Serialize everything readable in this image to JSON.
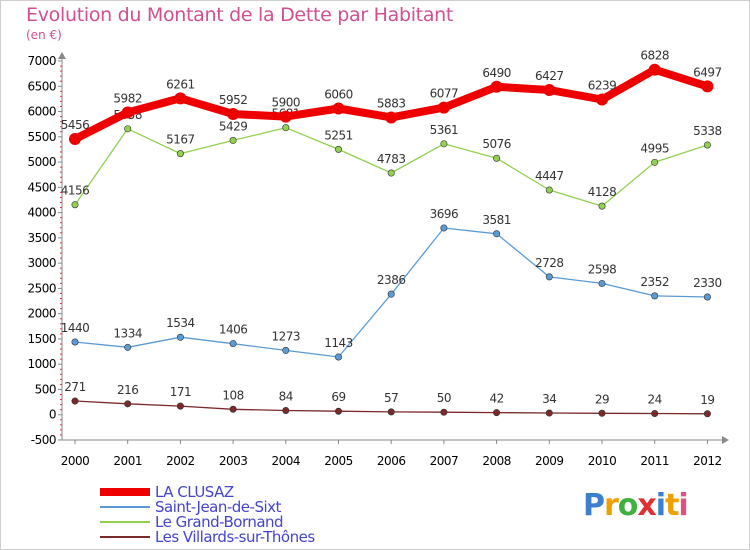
{
  "title": "Evolution du Montant de la Dette par Habitant",
  "unit_label": "(en €)",
  "logo": {
    "text": "Proxiti",
    "colors": [
      "#3a7fd0",
      "#f0a000",
      "#40b040",
      "#e03030",
      "#3a7fd0",
      "#f0a000",
      "#e05080"
    ]
  },
  "chart_data": {
    "type": "line",
    "title": "Evolution du Montant de la Dette par Habitant",
    "ylabel": "(en €)",
    "xlabel": "",
    "x": [
      "2000",
      "2001",
      "2002",
      "2003",
      "2004",
      "2005",
      "2006",
      "2007",
      "2008",
      "2009",
      "2010",
      "2011",
      "2012"
    ],
    "ylim": [
      -500,
      7000
    ],
    "yticks": [
      -500,
      0,
      500,
      1000,
      1500,
      2000,
      2500,
      3000,
      3500,
      4000,
      4500,
      5000,
      5500,
      6000,
      6500,
      7000
    ],
    "grid": false,
    "legend_position": "bottom-left",
    "series": [
      {
        "name": "LA CLUSAZ",
        "color": "#ee0000",
        "thick": true,
        "values": [
          5456,
          5982,
          6261,
          5952,
          5900,
          6060,
          5883,
          6077,
          6490,
          6427,
          6239,
          6828,
          6497
        ]
      },
      {
        "name": "Saint-Jean-de-Sixt",
        "color": "#5b9bd5",
        "thick": false,
        "values": [
          1440,
          1334,
          1534,
          1406,
          1273,
          1143,
          2386,
          3696,
          3581,
          2728,
          2598,
          2352,
          2330
        ]
      },
      {
        "name": "Le Grand-Bornand",
        "color": "#92d050",
        "thick": false,
        "values": [
          4156,
          5658,
          5167,
          5429,
          5681,
          5251,
          4783,
          5361,
          5076,
          4447,
          4128,
          4995,
          5338
        ]
      },
      {
        "name": "Les Villards-sur-Thônes",
        "color": "#7a2a2a",
        "thick": false,
        "values": [
          271,
          216,
          171,
          108,
          84,
          69,
          57,
          50,
          42,
          34,
          29,
          24,
          19
        ]
      }
    ]
  }
}
